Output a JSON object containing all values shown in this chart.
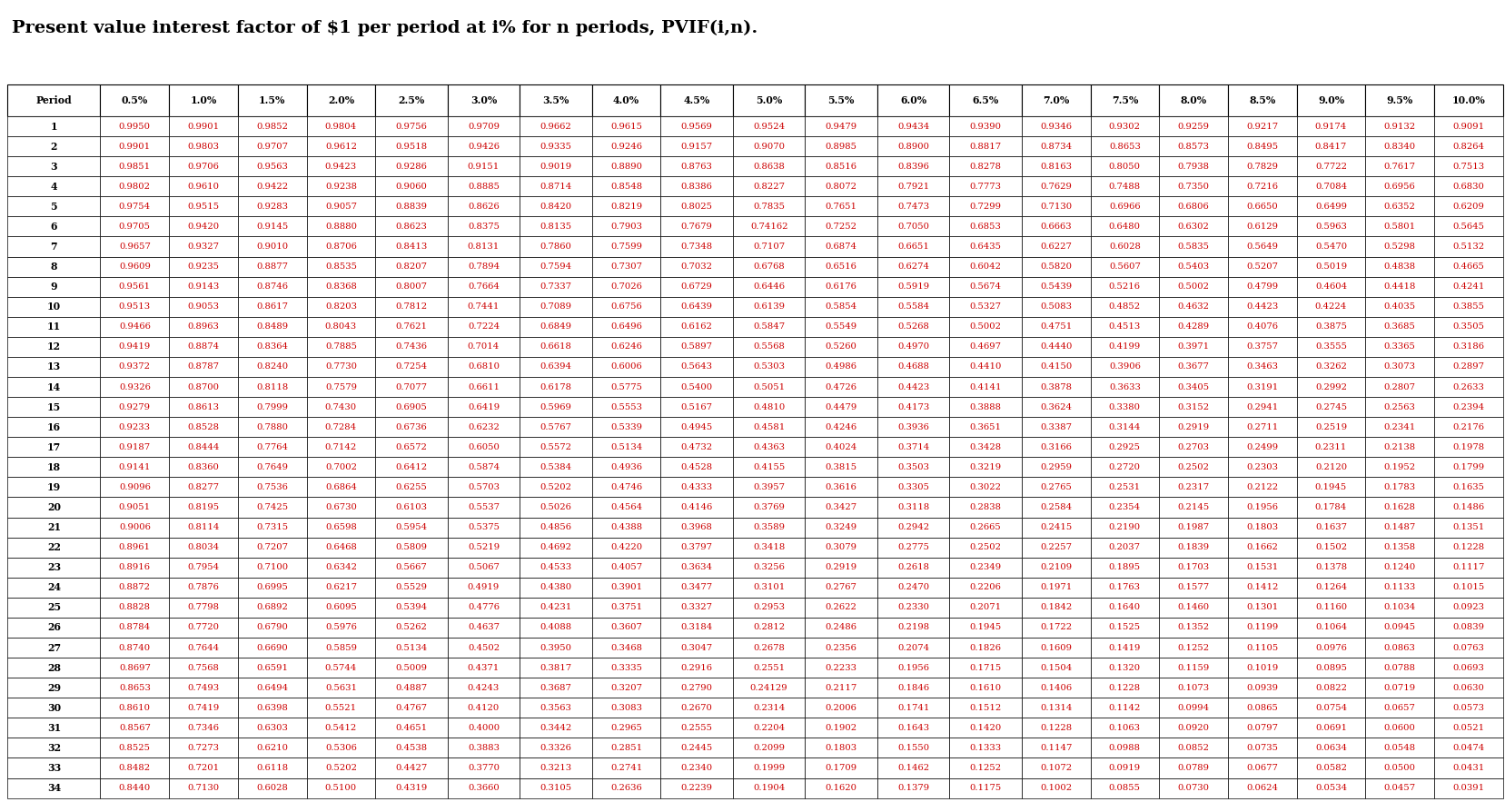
{
  "title": "Present value interest factor of $1 per period at i% for n periods, PVIF(i,n).",
  "headers": [
    "Period",
    "0.5%",
    "1.0%",
    "1.5%",
    "2.0%",
    "2.5%",
    "3.0%",
    "3.5%",
    "4.0%",
    "4.5%",
    "5.0%",
    "5.5%",
    "6.0%",
    "6.5%",
    "7.0%",
    "7.5%",
    "8.0%",
    "8.5%",
    "9.0%",
    "9.5%",
    "10.0%"
  ],
  "rows": [
    [
      1,
      "0.9950",
      "0.9901",
      "0.9852",
      "0.9804",
      "0.9756",
      "0.9709",
      "0.9662",
      "0.9615",
      "0.9569",
      "0.9524",
      "0.9479",
      "0.9434",
      "0.9390",
      "0.9346",
      "0.9302",
      "0.9259",
      "0.9217",
      "0.9174",
      "0.9132",
      "0.9091"
    ],
    [
      2,
      "0.9901",
      "0.9803",
      "0.9707",
      "0.9612",
      "0.9518",
      "0.9426",
      "0.9335",
      "0.9246",
      "0.9157",
      "0.9070",
      "0.8985",
      "0.8900",
      "0.8817",
      "0.8734",
      "0.8653",
      "0.8573",
      "0.8495",
      "0.8417",
      "0.8340",
      "0.8264"
    ],
    [
      3,
      "0.9851",
      "0.9706",
      "0.9563",
      "0.9423",
      "0.9286",
      "0.9151",
      "0.9019",
      "0.8890",
      "0.8763",
      "0.8638",
      "0.8516",
      "0.8396",
      "0.8278",
      "0.8163",
      "0.8050",
      "0.7938",
      "0.7829",
      "0.7722",
      "0.7617",
      "0.7513"
    ],
    [
      4,
      "0.9802",
      "0.9610",
      "0.9422",
      "0.9238",
      "0.9060",
      "0.8885",
      "0.8714",
      "0.8548",
      "0.8386",
      "0.8227",
      "0.8072",
      "0.7921",
      "0.7773",
      "0.7629",
      "0.7488",
      "0.7350",
      "0.7216",
      "0.7084",
      "0.6956",
      "0.6830"
    ],
    [
      5,
      "0.9754",
      "0.9515",
      "0.9283",
      "0.9057",
      "0.8839",
      "0.8626",
      "0.8420",
      "0.8219",
      "0.8025",
      "0.7835",
      "0.7651",
      "0.7473",
      "0.7299",
      "0.7130",
      "0.6966",
      "0.6806",
      "0.6650",
      "0.6499",
      "0.6352",
      "0.6209"
    ],
    [
      6,
      "0.9705",
      "0.9420",
      "0.9145",
      "0.8880",
      "0.8623",
      "0.8375",
      "0.8135",
      "0.7903",
      "0.7679",
      "0.74162",
      "0.7252",
      "0.7050",
      "0.6853",
      "0.6663",
      "0.6480",
      "0.6302",
      "0.6129",
      "0.5963",
      "0.5801",
      "0.5645"
    ],
    [
      7,
      "0.9657",
      "0.9327",
      "0.9010",
      "0.8706",
      "0.8413",
      "0.8131",
      "0.7860",
      "0.7599",
      "0.7348",
      "0.7107",
      "0.6874",
      "0.6651",
      "0.6435",
      "0.6227",
      "0.6028",
      "0.5835",
      "0.5649",
      "0.5470",
      "0.5298",
      "0.5132"
    ],
    [
      8,
      "0.9609",
      "0.9235",
      "0.8877",
      "0.8535",
      "0.8207",
      "0.7894",
      "0.7594",
      "0.7307",
      "0.7032",
      "0.6768",
      "0.6516",
      "0.6274",
      "0.6042",
      "0.5820",
      "0.5607",
      "0.5403",
      "0.5207",
      "0.5019",
      "0.4838",
      "0.4665"
    ],
    [
      9,
      "0.9561",
      "0.9143",
      "0.8746",
      "0.8368",
      "0.8007",
      "0.7664",
      "0.7337",
      "0.7026",
      "0.6729",
      "0.6446",
      "0.6176",
      "0.5919",
      "0.5674",
      "0.5439",
      "0.5216",
      "0.5002",
      "0.4799",
      "0.4604",
      "0.4418",
      "0.4241"
    ],
    [
      10,
      "0.9513",
      "0.9053",
      "0.8617",
      "0.8203",
      "0.7812",
      "0.7441",
      "0.7089",
      "0.6756",
      "0.6439",
      "0.6139",
      "0.5854",
      "0.5584",
      "0.5327",
      "0.5083",
      "0.4852",
      "0.4632",
      "0.4423",
      "0.4224",
      "0.4035",
      "0.3855"
    ],
    [
      11,
      "0.9466",
      "0.8963",
      "0.8489",
      "0.8043",
      "0.7621",
      "0.7224",
      "0.6849",
      "0.6496",
      "0.6162",
      "0.5847",
      "0.5549",
      "0.5268",
      "0.5002",
      "0.4751",
      "0.4513",
      "0.4289",
      "0.4076",
      "0.3875",
      "0.3685",
      "0.3505"
    ],
    [
      12,
      "0.9419",
      "0.8874",
      "0.8364",
      "0.7885",
      "0.7436",
      "0.7014",
      "0.6618",
      "0.6246",
      "0.5897",
      "0.5568",
      "0.5260",
      "0.4970",
      "0.4697",
      "0.4440",
      "0.4199",
      "0.3971",
      "0.3757",
      "0.3555",
      "0.3365",
      "0.3186"
    ],
    [
      13,
      "0.9372",
      "0.8787",
      "0.8240",
      "0.7730",
      "0.7254",
      "0.6810",
      "0.6394",
      "0.6006",
      "0.5643",
      "0.5303",
      "0.4986",
      "0.4688",
      "0.4410",
      "0.4150",
      "0.3906",
      "0.3677",
      "0.3463",
      "0.3262",
      "0.3073",
      "0.2897"
    ],
    [
      14,
      "0.9326",
      "0.8700",
      "0.8118",
      "0.7579",
      "0.7077",
      "0.6611",
      "0.6178",
      "0.5775",
      "0.5400",
      "0.5051",
      "0.4726",
      "0.4423",
      "0.4141",
      "0.3878",
      "0.3633",
      "0.3405",
      "0.3191",
      "0.2992",
      "0.2807",
      "0.2633"
    ],
    [
      15,
      "0.9279",
      "0.8613",
      "0.7999",
      "0.7430",
      "0.6905",
      "0.6419",
      "0.5969",
      "0.5553",
      "0.5167",
      "0.4810",
      "0.4479",
      "0.4173",
      "0.3888",
      "0.3624",
      "0.3380",
      "0.3152",
      "0.2941",
      "0.2745",
      "0.2563",
      "0.2394"
    ],
    [
      16,
      "0.9233",
      "0.8528",
      "0.7880",
      "0.7284",
      "0.6736",
      "0.6232",
      "0.5767",
      "0.5339",
      "0.4945",
      "0.4581",
      "0.4246",
      "0.3936",
      "0.3651",
      "0.3387",
      "0.3144",
      "0.2919",
      "0.2711",
      "0.2519",
      "0.2341",
      "0.2176"
    ],
    [
      17,
      "0.9187",
      "0.8444",
      "0.7764",
      "0.7142",
      "0.6572",
      "0.6050",
      "0.5572",
      "0.5134",
      "0.4732",
      "0.4363",
      "0.4024",
      "0.3714",
      "0.3428",
      "0.3166",
      "0.2925",
      "0.2703",
      "0.2499",
      "0.2311",
      "0.2138",
      "0.1978"
    ],
    [
      18,
      "0.9141",
      "0.8360",
      "0.7649",
      "0.7002",
      "0.6412",
      "0.5874",
      "0.5384",
      "0.4936",
      "0.4528",
      "0.4155",
      "0.3815",
      "0.3503",
      "0.3219",
      "0.2959",
      "0.2720",
      "0.2502",
      "0.2303",
      "0.2120",
      "0.1952",
      "0.1799"
    ],
    [
      19,
      "0.9096",
      "0.8277",
      "0.7536",
      "0.6864",
      "0.6255",
      "0.5703",
      "0.5202",
      "0.4746",
      "0.4333",
      "0.3957",
      "0.3616",
      "0.3305",
      "0.3022",
      "0.2765",
      "0.2531",
      "0.2317",
      "0.2122",
      "0.1945",
      "0.1783",
      "0.1635"
    ],
    [
      20,
      "0.9051",
      "0.8195",
      "0.7425",
      "0.6730",
      "0.6103",
      "0.5537",
      "0.5026",
      "0.4564",
      "0.4146",
      "0.3769",
      "0.3427",
      "0.3118",
      "0.2838",
      "0.2584",
      "0.2354",
      "0.2145",
      "0.1956",
      "0.1784",
      "0.1628",
      "0.1486"
    ],
    [
      21,
      "0.9006",
      "0.8114",
      "0.7315",
      "0.6598",
      "0.5954",
      "0.5375",
      "0.4856",
      "0.4388",
      "0.3968",
      "0.3589",
      "0.3249",
      "0.2942",
      "0.2665",
      "0.2415",
      "0.2190",
      "0.1987",
      "0.1803",
      "0.1637",
      "0.1487",
      "0.1351"
    ],
    [
      22,
      "0.8961",
      "0.8034",
      "0.7207",
      "0.6468",
      "0.5809",
      "0.5219",
      "0.4692",
      "0.4220",
      "0.3797",
      "0.3418",
      "0.3079",
      "0.2775",
      "0.2502",
      "0.2257",
      "0.2037",
      "0.1839",
      "0.1662",
      "0.1502",
      "0.1358",
      "0.1228"
    ],
    [
      23,
      "0.8916",
      "0.7954",
      "0.7100",
      "0.6342",
      "0.5667",
      "0.5067",
      "0.4533",
      "0.4057",
      "0.3634",
      "0.3256",
      "0.2919",
      "0.2618",
      "0.2349",
      "0.2109",
      "0.1895",
      "0.1703",
      "0.1531",
      "0.1378",
      "0.1240",
      "0.1117"
    ],
    [
      24,
      "0.8872",
      "0.7876",
      "0.6995",
      "0.6217",
      "0.5529",
      "0.4919",
      "0.4380",
      "0.3901",
      "0.3477",
      "0.3101",
      "0.2767",
      "0.2470",
      "0.2206",
      "0.1971",
      "0.1763",
      "0.1577",
      "0.1412",
      "0.1264",
      "0.1133",
      "0.1015"
    ],
    [
      25,
      "0.8828",
      "0.7798",
      "0.6892",
      "0.6095",
      "0.5394",
      "0.4776",
      "0.4231",
      "0.3751",
      "0.3327",
      "0.2953",
      "0.2622",
      "0.2330",
      "0.2071",
      "0.1842",
      "0.1640",
      "0.1460",
      "0.1301",
      "0.1160",
      "0.1034",
      "0.0923"
    ],
    [
      26,
      "0.8784",
      "0.7720",
      "0.6790",
      "0.5976",
      "0.5262",
      "0.4637",
      "0.4088",
      "0.3607",
      "0.3184",
      "0.2812",
      "0.2486",
      "0.2198",
      "0.1945",
      "0.1722",
      "0.1525",
      "0.1352",
      "0.1199",
      "0.1064",
      "0.0945",
      "0.0839"
    ],
    [
      27,
      "0.8740",
      "0.7644",
      "0.6690",
      "0.5859",
      "0.5134",
      "0.4502",
      "0.3950",
      "0.3468",
      "0.3047",
      "0.2678",
      "0.2356",
      "0.2074",
      "0.1826",
      "0.1609",
      "0.1419",
      "0.1252",
      "0.1105",
      "0.0976",
      "0.0863",
      "0.0763"
    ],
    [
      28,
      "0.8697",
      "0.7568",
      "0.6591",
      "0.5744",
      "0.5009",
      "0.4371",
      "0.3817",
      "0.3335",
      "0.2916",
      "0.2551",
      "0.2233",
      "0.1956",
      "0.1715",
      "0.1504",
      "0.1320",
      "0.1159",
      "0.1019",
      "0.0895",
      "0.0788",
      "0.0693"
    ],
    [
      29,
      "0.8653",
      "0.7493",
      "0.6494",
      "0.5631",
      "0.4887",
      "0.4243",
      "0.3687",
      "0.3207",
      "0.2790",
      "0.24129",
      "0.2117",
      "0.1846",
      "0.1610",
      "0.1406",
      "0.1228",
      "0.1073",
      "0.0939",
      "0.0822",
      "0.0719",
      "0.0630"
    ],
    [
      30,
      "0.8610",
      "0.7419",
      "0.6398",
      "0.5521",
      "0.4767",
      "0.4120",
      "0.3563",
      "0.3083",
      "0.2670",
      "0.2314",
      "0.2006",
      "0.1741",
      "0.1512",
      "0.1314",
      "0.1142",
      "0.0994",
      "0.0865",
      "0.0754",
      "0.0657",
      "0.0573"
    ],
    [
      31,
      "0.8567",
      "0.7346",
      "0.6303",
      "0.5412",
      "0.4651",
      "0.4000",
      "0.3442",
      "0.2965",
      "0.2555",
      "0.2204",
      "0.1902",
      "0.1643",
      "0.1420",
      "0.1228",
      "0.1063",
      "0.0920",
      "0.0797",
      "0.0691",
      "0.0600",
      "0.0521"
    ],
    [
      32,
      "0.8525",
      "0.7273",
      "0.6210",
      "0.5306",
      "0.4538",
      "0.3883",
      "0.3326",
      "0.2851",
      "0.2445",
      "0.2099",
      "0.1803",
      "0.1550",
      "0.1333",
      "0.1147",
      "0.0988",
      "0.0852",
      "0.0735",
      "0.0634",
      "0.0548",
      "0.0474"
    ],
    [
      33,
      "0.8482",
      "0.7201",
      "0.6118",
      "0.5202",
      "0.4427",
      "0.3770",
      "0.3213",
      "0.2741",
      "0.2340",
      "0.1999",
      "0.1709",
      "0.1462",
      "0.1252",
      "0.1072",
      "0.0919",
      "0.0789",
      "0.0677",
      "0.0582",
      "0.0500",
      "0.0431"
    ],
    [
      34,
      "0.8440",
      "0.7130",
      "0.6028",
      "0.5100",
      "0.4319",
      "0.3660",
      "0.3105",
      "0.2636",
      "0.2239",
      "0.1904",
      "0.1620",
      "0.1379",
      "0.1175",
      "0.1002",
      "0.0855",
      "0.0730",
      "0.0624",
      "0.0534",
      "0.0457",
      "0.0391"
    ]
  ],
  "title_fontsize": 14,
  "header_fontsize": 7.8,
  "data_fontsize": 7.2,
  "period_fontsize": 7.8,
  "border_color": "#000000",
  "text_color_period": "#000000",
  "text_color_header": "#000000",
  "text_color_data": "#cc0000",
  "col_widths_rel": [
    1.35,
    1.0,
    1.0,
    1.0,
    1.0,
    1.05,
    1.05,
    1.05,
    1.0,
    1.05,
    1.05,
    1.05,
    1.05,
    1.05,
    1.0,
    1.0,
    1.0,
    1.0,
    1.0,
    1.0,
    1.0
  ]
}
